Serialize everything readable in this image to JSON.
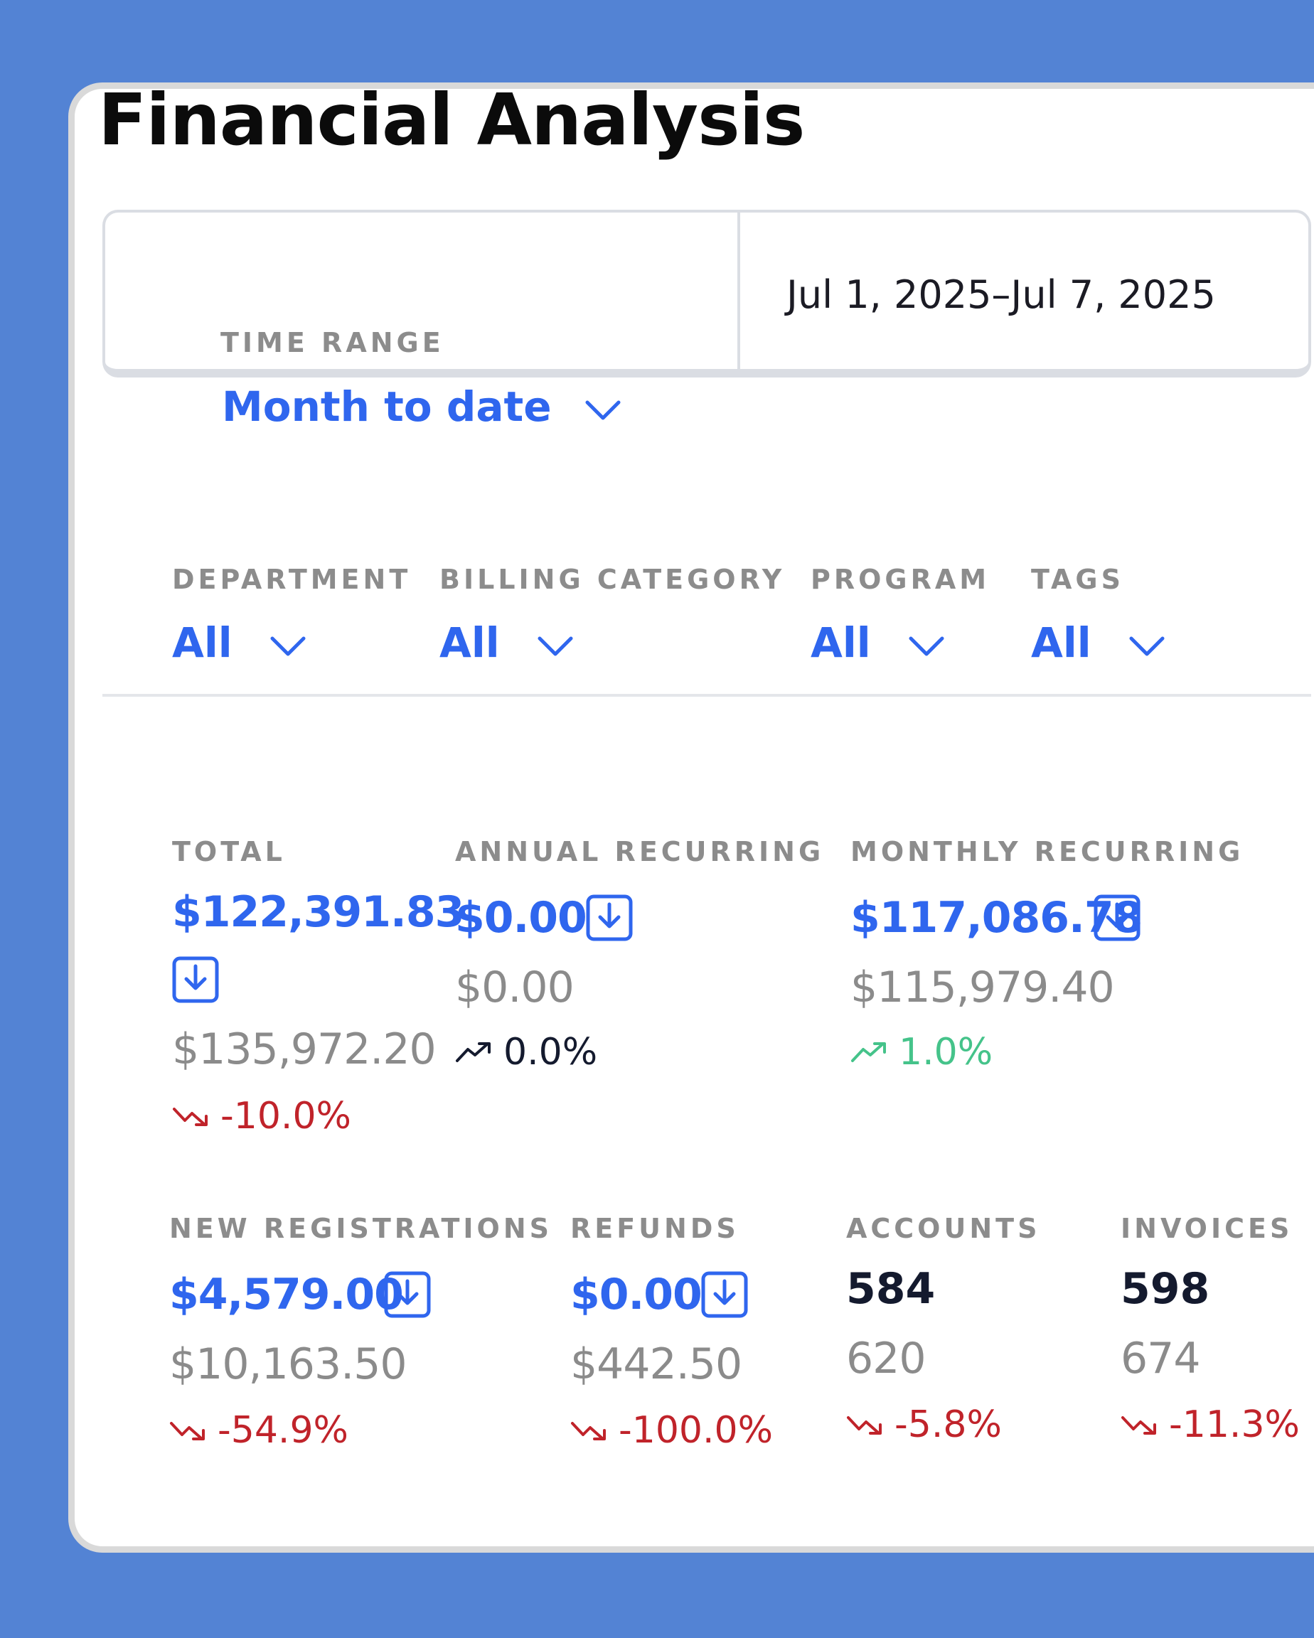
{
  "page": {
    "title": "Financial Analysis"
  },
  "time_range": {
    "label": "TIME RANGE",
    "value": "Month to date",
    "dates": "Jul 1, 2025–Jul 7, 2025"
  },
  "filters": [
    {
      "label": "DEPARTMENT",
      "value": "All"
    },
    {
      "label": "BILLING CATEGORY",
      "value": "All"
    },
    {
      "label": "PROGRAM",
      "value": "All"
    },
    {
      "label": "TAGS",
      "value": "All"
    }
  ],
  "metrics": {
    "total": {
      "label": "TOTAL",
      "value": "$122,391.83",
      "previous": "$135,972.20",
      "change": "-10.0%"
    },
    "annual_recurring": {
      "label": "ANNUAL RECURRING",
      "value": "$0.00",
      "previous": "$0.00",
      "change": "0.0%"
    },
    "monthly_recurring": {
      "label": "MONTHLY RECURRING",
      "value": "$117,086.78",
      "previous": "$115,979.40",
      "change": "1.0%"
    },
    "new_registrations": {
      "label": "NEW REGISTRATIONS",
      "value": "$4,579.00",
      "previous": "$10,163.50",
      "change": "-54.9%"
    },
    "refunds": {
      "label": "REFUNDS",
      "value": "$0.00",
      "previous": "$442.50",
      "change": "-100.0%"
    },
    "accounts": {
      "label": "ACCOUNTS",
      "value": "584",
      "previous": "620",
      "change": "-5.8%"
    },
    "invoices": {
      "label": "INVOICES",
      "value": "598",
      "previous": "674",
      "change": "-11.3%"
    }
  },
  "colors": {
    "accent": "#2f66ee",
    "negative": "#c0232a",
    "positive": "#45c38a",
    "neutral": "#141a2e",
    "background": "#5383d4"
  },
  "icons": {
    "download": "download-icon",
    "chevron": "chevron-down-icon",
    "trend_up": "trend-up-icon",
    "trend_down": "trend-down-icon"
  }
}
